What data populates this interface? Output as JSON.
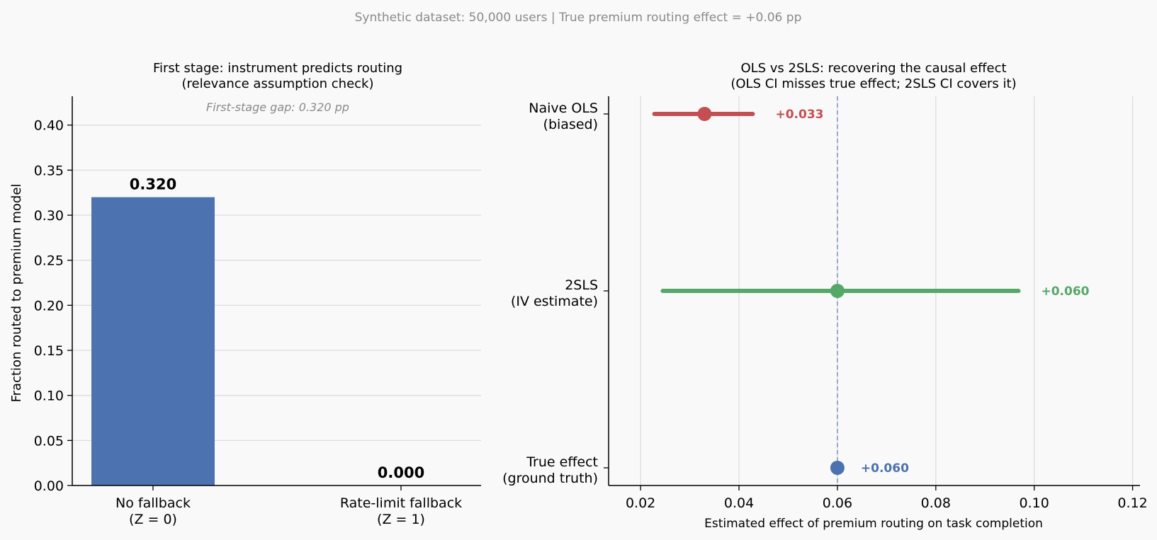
{
  "suptitle": "Synthetic dataset: 50,000 users | True premium routing effect = +0.06 pp",
  "colors": {
    "bar": "#4c72b0",
    "ols": "#c44e52",
    "tsls": "#55a868",
    "truth": "#4c72b0",
    "grid": "#dddddd",
    "background": "#f9f9f9"
  },
  "chart_data": [
    {
      "type": "bar",
      "title_line1": "First stage: instrument predicts routing",
      "title_line2": "(relevance assumption check)",
      "ylabel": "Fraction routed to premium model",
      "annotation": "First-stage gap: 0.320 pp",
      "categories": [
        {
          "line1": "No fallback",
          "line2": "(Z = 0)"
        },
        {
          "line1": "Rate-limit fallback",
          "line2": "(Z = 1)"
        }
      ],
      "values": [
        0.32,
        0.0
      ],
      "value_labels": [
        "0.320",
        "0.000"
      ],
      "ylim": [
        0,
        0.432
      ],
      "yticks": [
        "0.00",
        "0.05",
        "0.10",
        "0.15",
        "0.20",
        "0.25",
        "0.30",
        "0.35",
        "0.40"
      ],
      "grid": "horizontal"
    },
    {
      "type": "scatter",
      "subtype": "point-estimate with confidence interval",
      "title_line1": "OLS vs 2SLS: recovering the causal effect",
      "title_line2": "(OLS CI misses true effect; 2SLS CI covers it)",
      "xlabel": "Estimated effect of premium routing on task completion",
      "xlim": [
        0.0135,
        0.1215
      ],
      "xticks": [
        "0.02",
        "0.04",
        "0.06",
        "0.08",
        "0.10",
        "0.12"
      ],
      "reference_line": 0.06,
      "grid": "vertical",
      "estimates": [
        {
          "line1": "Naive OLS",
          "line2": "(biased)",
          "estimate": 0.033,
          "ci": [
            0.0228,
            0.0428
          ],
          "label": "+0.033",
          "color_key": "ols"
        },
        {
          "line1": "2SLS",
          "line2": "(IV estimate)",
          "estimate": 0.06,
          "ci": [
            0.0245,
            0.0968
          ],
          "label": "+0.060",
          "color_key": "tsls"
        },
        {
          "line1": "True effect",
          "line2": "(ground truth)",
          "estimate": 0.06,
          "ci": null,
          "label": "+0.060",
          "color_key": "truth"
        }
      ]
    }
  ]
}
